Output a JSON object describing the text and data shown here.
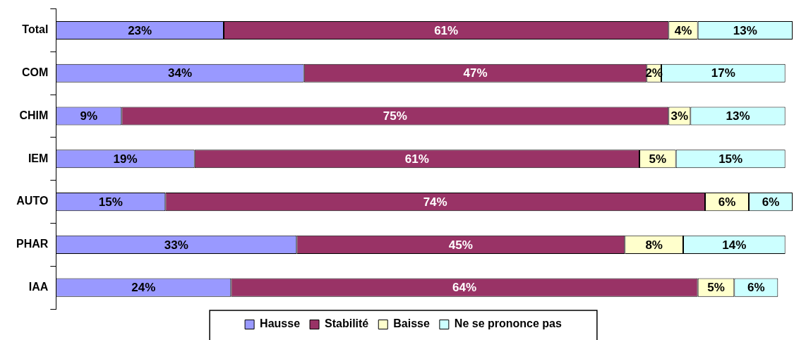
{
  "chart_data": {
    "type": "bar",
    "orientation": "horizontal",
    "stacked": true,
    "legend": "bottom",
    "tick_labels": "y",
    "categories": [
      "Total",
      "COM",
      "CHIM",
      "IEM",
      "AUTO",
      "PHAR",
      "IAA"
    ],
    "series": [
      {
        "name": "Hausse",
        "color": "#9999ff",
        "values": [
          23,
          34,
          9,
          19,
          15,
          33,
          24
        ],
        "value_labels": [
          "23%",
          "34%",
          "9%",
          "19%",
          "15%",
          "33%",
          "24%"
        ]
      },
      {
        "name": "Stabilité",
        "color": "#993366",
        "values": [
          61,
          47,
          75,
          61,
          74,
          45,
          64
        ],
        "value_labels": [
          "61%",
          "47%",
          "75%",
          "61%",
          "74%",
          "45%",
          "64%"
        ]
      },
      {
        "name": "Baisse",
        "color": "#ffffcc",
        "values": [
          4,
          2,
          3,
          5,
          6,
          8,
          5
        ],
        "value_labels": [
          "4%",
          "2%",
          "3%",
          "5%",
          "6%",
          "8%",
          "5%"
        ]
      },
      {
        "name": "Ne se prononce pas",
        "color": "#ccffff",
        "values": [
          13,
          17,
          13,
          15,
          6,
          14,
          6
        ],
        "value_labels": [
          "13%",
          "17%",
          "13%",
          "15%",
          "6%",
          "14%",
          "6%"
        ]
      }
    ]
  }
}
